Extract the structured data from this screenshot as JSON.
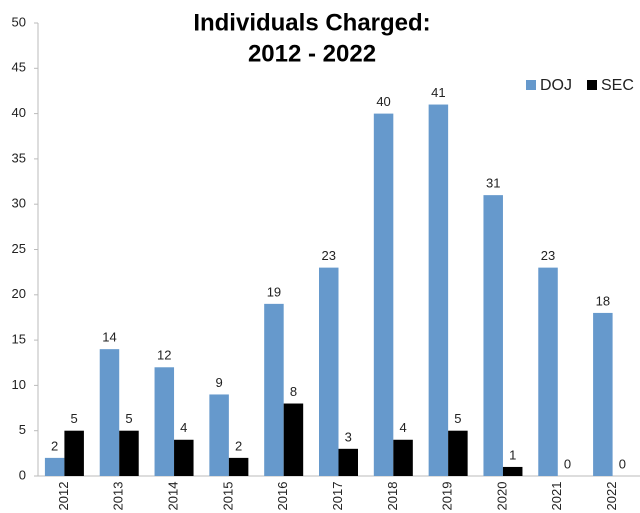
{
  "chart_data": {
    "type": "bar",
    "title": [
      "Individuals Charged:",
      "2012 - 2022"
    ],
    "categories": [
      "2012",
      "2013",
      "2014",
      "2015",
      "2016",
      "2017",
      "2018",
      "2019",
      "2020",
      "2021",
      "2022"
    ],
    "series": [
      {
        "name": "DOJ",
        "color": "#6699cc",
        "values": [
          2,
          14,
          12,
          9,
          19,
          23,
          40,
          41,
          31,
          23,
          18
        ]
      },
      {
        "name": "SEC",
        "color": "#000000",
        "values": [
          5,
          5,
          4,
          2,
          8,
          3,
          4,
          5,
          1,
          0,
          0
        ]
      }
    ],
    "ylim": [
      0,
      50
    ],
    "yticks": [
      0,
      5,
      10,
      15,
      20,
      25,
      30,
      35,
      40,
      45,
      50
    ],
    "grid": false,
    "legend": "top-right"
  }
}
